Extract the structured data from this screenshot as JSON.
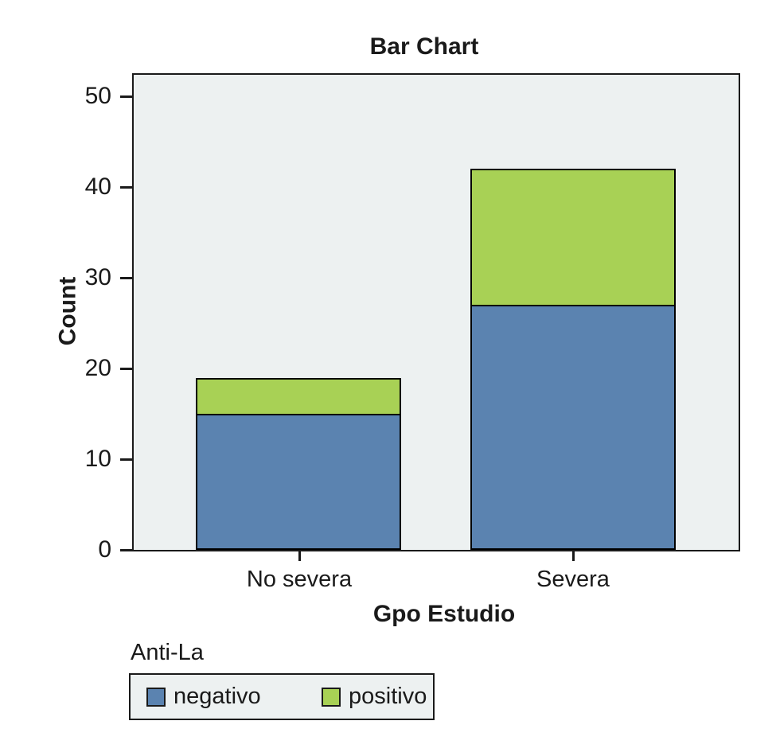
{
  "title": "Bar Chart",
  "y_axis": {
    "label": "Count"
  },
  "x_axis": {
    "label": "Gpo Estudio"
  },
  "legend": {
    "title": "Anti-La",
    "items": [
      {
        "label": "negativo",
        "color": "#5b83b0"
      },
      {
        "label": "positivo",
        "color": "#a8d155"
      }
    ]
  },
  "colors": {
    "plot_background": "#edf1f1",
    "axis": "#1a1a1a",
    "bar_border": "#000000",
    "page_background": "#ffffff"
  },
  "chart_data": {
    "type": "bar",
    "stacked": true,
    "title": "Bar Chart",
    "xlabel": "Gpo Estudio",
    "ylabel": "Count",
    "categories": [
      "No severa",
      "Severa"
    ],
    "series": [
      {
        "name": "negativo",
        "color": "#5b83b0",
        "values": [
          15,
          27
        ]
      },
      {
        "name": "positivo",
        "color": "#a8d155",
        "values": [
          4,
          15
        ]
      }
    ],
    "stack_totals": [
      19,
      42
    ],
    "ylim": [
      0,
      52.4
    ],
    "yticks": [
      0,
      10,
      20,
      30,
      40,
      50
    ],
    "grid": false,
    "legend_position": "below-left"
  }
}
